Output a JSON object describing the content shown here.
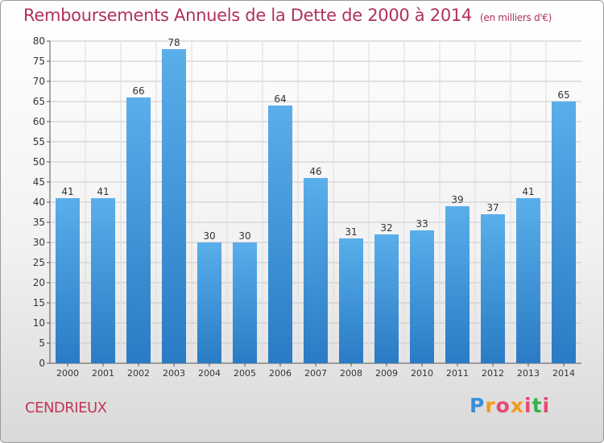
{
  "header": {
    "title": "Remboursements Annuels de la Dette de 2000 à 2014",
    "unit": "(en milliers d'€)"
  },
  "footer": {
    "commune": "CENDRIEUX",
    "logo_text": "Proxiti"
  },
  "colors": {
    "title": "#b03060",
    "bar_top": "#5aaeea",
    "bar_bottom": "#2a7bc4",
    "grid": "#c8c8c8"
  },
  "chart_data": {
    "type": "bar",
    "title": "Remboursements Annuels de la Dette de 2000 à 2014",
    "xlabel": "",
    "ylabel": "",
    "categories": [
      "2000",
      "2001",
      "2002",
      "2003",
      "2004",
      "2005",
      "2006",
      "2007",
      "2008",
      "2009",
      "2010",
      "2011",
      "2012",
      "2013",
      "2014"
    ],
    "values": [
      41,
      41,
      66,
      78,
      30,
      30,
      64,
      46,
      31,
      32,
      33,
      39,
      37,
      41,
      65
    ],
    "ylim": [
      0,
      80
    ],
    "yticks": [
      0,
      5,
      10,
      15,
      20,
      25,
      30,
      35,
      40,
      45,
      50,
      55,
      60,
      65,
      70,
      75,
      80
    ],
    "grid": true,
    "legend": "none"
  }
}
